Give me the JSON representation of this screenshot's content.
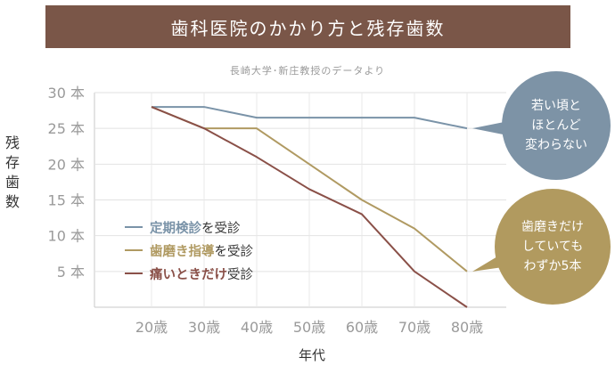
{
  "header": {
    "title": "歯科医院のかかり方と残存歯数"
  },
  "subtitle": "長崎大学･新庄教授のデータより",
  "chart_data": {
    "type": "line",
    "title": "歯科医院のかかり方と残存歯数",
    "xlabel": "年代",
    "ylabel": "残存歯数",
    "categories": [
      "20歳",
      "30歳",
      "40歳",
      "50歳",
      "60歳",
      "70歳",
      "80歳"
    ],
    "ytick_labels": [
      "30 本",
      "25 本",
      "20 本",
      "15 本",
      "10 本",
      "5 本"
    ],
    "ylim": [
      0,
      30
    ],
    "yticks": [
      30,
      25,
      20,
      15,
      10,
      5
    ],
    "grid": true,
    "series": [
      {
        "name": "定期検診を受診",
        "name_emphasis": "定期検診",
        "name_suffix": "を受診",
        "color": "#7a93a8",
        "values": [
          28,
          28,
          26.5,
          26.5,
          26.5,
          26.5,
          25
        ]
      },
      {
        "name": "歯磨き指導を受診",
        "name_emphasis": "歯磨き指導",
        "name_suffix": "を受診",
        "color": "#b09a62",
        "values": [
          28,
          25,
          25,
          20,
          15,
          11,
          5
        ]
      },
      {
        "name": "痛いときだけ受診",
        "name_emphasis": "痛いときだけ",
        "name_suffix": "受診",
        "color": "#8a5048",
        "values": [
          28,
          25,
          21,
          16.5,
          13,
          5,
          0
        ]
      }
    ],
    "annotations": [
      {
        "text": "若い頃と\nほとんど\n変わらない",
        "color": "#7d93a6",
        "series": 0
      },
      {
        "text": "歯磨きだけ\nしていても\nわずか5本",
        "color": "#b19a5f",
        "series": 1
      }
    ]
  }
}
